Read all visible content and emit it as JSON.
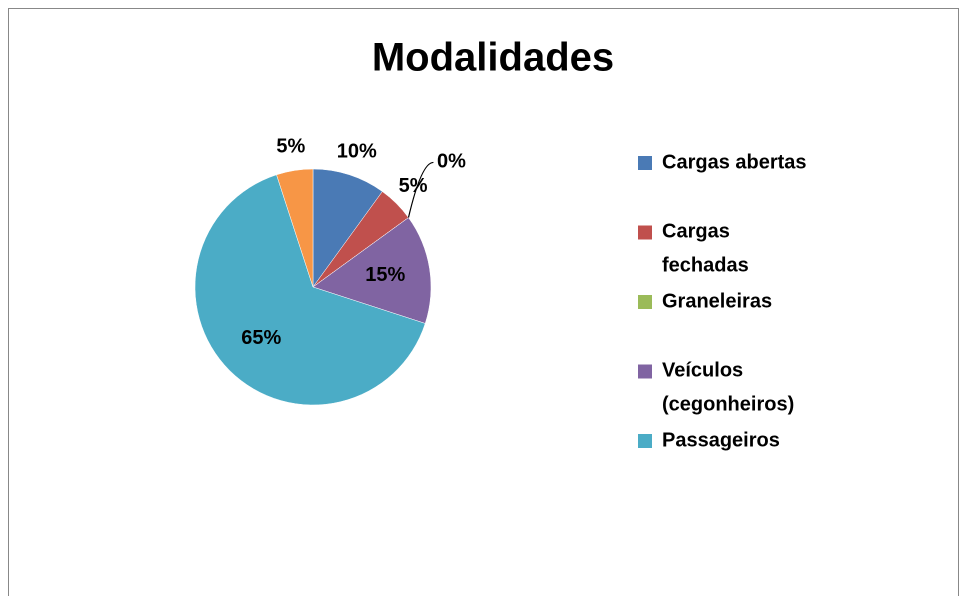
{
  "chart_data": {
    "type": "pie",
    "title": "Modalidades",
    "categories": [
      "Cargas abertas",
      "Cargas fechadas",
      "Graneleiras",
      "Veículos (cegonheiros)",
      "Passageiros",
      null
    ],
    "values": [
      10,
      5,
      0,
      15,
      65,
      5
    ],
    "value_labels": [
      "10%",
      "5%",
      "0%",
      "15%",
      "65%",
      "5%"
    ],
    "colors": [
      "#4a7ab5",
      "#c0504d",
      "#9bbb59",
      "#8064a2",
      "#4bacc6",
      "#f79646"
    ],
    "legend": "right"
  }
}
